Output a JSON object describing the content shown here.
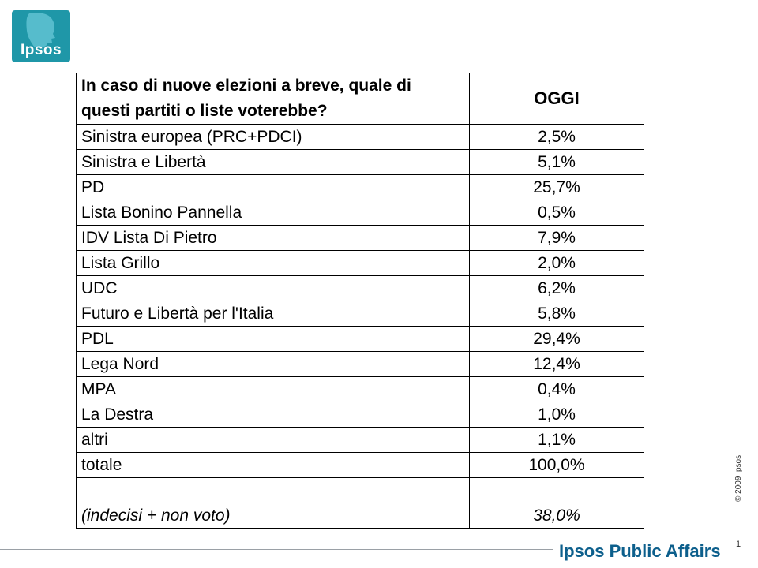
{
  "logo": {
    "text": "Ipsos",
    "color": "#1f97a8",
    "icon": "ipsos-profile-icon"
  },
  "table": {
    "question": "In caso di nuove elezioni a breve, quale di questi partiti o liste voterebbe?",
    "column_header": "OGGI",
    "rows": [
      {
        "label": "Sinistra europea (PRC+PDCI)",
        "value": "2,5%"
      },
      {
        "label": "Sinistra e Libertà",
        "value": "5,1%"
      },
      {
        "label": "PD",
        "value": "25,7%"
      },
      {
        "label": "Lista Bonino Pannella",
        "value": "0,5%"
      },
      {
        "label": "IDV Lista Di Pietro",
        "value": "7,9%"
      },
      {
        "label": "Lista Grillo",
        "value": "2,0%"
      },
      {
        "label": "UDC",
        "value": "6,2%"
      },
      {
        "label": "Futuro e Libertà per l'Italia",
        "value": "5,8%"
      },
      {
        "label": "PDL",
        "value": "29,4%"
      },
      {
        "label": "Lega Nord",
        "value": "12,4%"
      },
      {
        "label": "MPA",
        "value": "0,4%"
      },
      {
        "label": "La Destra",
        "value": "1,0%"
      },
      {
        "label": "altri",
        "value": "1,1%"
      },
      {
        "label": "totale",
        "value": "100,0%"
      },
      {
        "label": "",
        "value": ""
      },
      {
        "label": "(indecisi + non voto)",
        "value": "38,0%"
      }
    ]
  },
  "footer": {
    "copyright": "© 2009 Ipsos",
    "brand": "Ipsos Public Affairs",
    "brand_color": "#0d5f8c",
    "page_number": "1"
  }
}
